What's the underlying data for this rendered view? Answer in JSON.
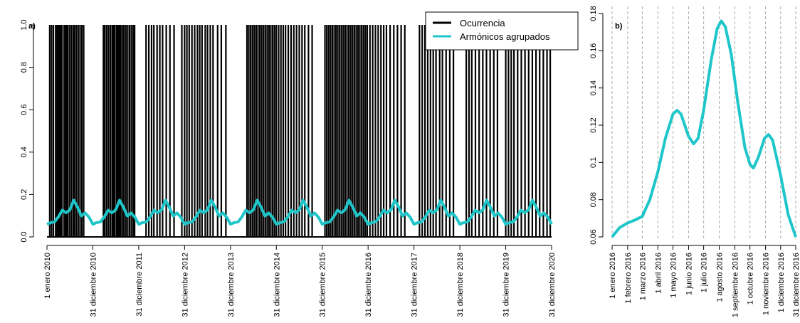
{
  "chart_data": [
    {
      "type": "line",
      "label": "a)",
      "legend": "topright",
      "xlim": [
        2010,
        2021
      ],
      "xticks": [
        {
          "value": 2010,
          "label": "1 enero 2010"
        },
        {
          "value": 2011,
          "label": "31 diciembre 2010"
        },
        {
          "value": 2012,
          "label": "31 diciembre 2011"
        },
        {
          "value": 2013,
          "label": "31 diciembre 2012"
        },
        {
          "value": 2014,
          "label": "31 diciembre 2013"
        },
        {
          "value": 2015,
          "label": "31 diciembre 2014"
        },
        {
          "value": 2016,
          "label": "31 diciembre 2015"
        },
        {
          "value": 2017,
          "label": "31 diciembre 2016"
        },
        {
          "value": 2018,
          "label": "31 diciembre 2017"
        },
        {
          "value": 2019,
          "label": "31 diciembre 2018"
        },
        {
          "value": 2020,
          "label": "31 diciembre 2019"
        },
        {
          "value": 2021,
          "label": "31 diciembre 2020"
        }
      ],
      "ylim": [
        0,
        1
      ],
      "yticks": [
        {
          "value": 0,
          "label": "0.0"
        },
        {
          "value": 0.2,
          "label": "0.2"
        },
        {
          "value": 0.4,
          "label": "0.4"
        },
        {
          "value": 0.6,
          "label": "0.6"
        },
        {
          "value": 0.8,
          "label": "0.8"
        },
        {
          "value": 1,
          "label": "1.0"
        }
      ],
      "series": [
        {
          "name": "Ocurrencia",
          "color": "#000000",
          "type": "spike",
          "x": [
            2010.06,
            2010.1,
            2010.14,
            2010.19,
            2010.22,
            2010.25,
            2010.28,
            2010.31,
            2010.35,
            2010.39,
            2010.42,
            2010.45,
            2010.49,
            2010.53,
            2010.57,
            2010.6,
            2010.64,
            2010.68,
            2010.72,
            2010.76,
            2010.8,
            2011.23,
            2011.26,
            2011.3,
            2011.34,
            2011.38,
            2011.42,
            2011.45,
            2011.48,
            2011.52,
            2011.55,
            2011.58,
            2011.61,
            2011.65,
            2011.68,
            2011.72,
            2011.76,
            2011.8,
            2011.84,
            2011.88,
            2011.91,
            2012.16,
            2012.22,
            2012.28,
            2012.33,
            2012.4,
            2012.46,
            2012.52,
            2012.6,
            2012.68,
            2012.77,
            2012.94,
            2013,
            2013.05,
            2013.1,
            2013.16,
            2013.22,
            2013.28,
            2013.33,
            2013.38,
            2013.45,
            2013.5,
            2013.56,
            2013.62,
            2013.72,
            2013.8,
            2013.9,
            2014.36,
            2014.4,
            2014.44,
            2014.48,
            2014.52,
            2014.56,
            2014.6,
            2014.64,
            2014.68,
            2014.72,
            2014.76,
            2014.8,
            2014.84,
            2014.88,
            2014.92,
            2014.96,
            2015,
            2015.05,
            2015.1,
            2015.15,
            2015.2,
            2015.26,
            2015.32,
            2015.38,
            2015.44,
            2015.5,
            2015.56,
            2015.62,
            2015.7,
            2015.78,
            2016.06,
            2016.1,
            2016.14,
            2016.18,
            2016.22,
            2016.26,
            2016.3,
            2016.34,
            2016.38,
            2016.42,
            2016.46,
            2016.5,
            2016.54,
            2016.58,
            2016.62,
            2016.66,
            2016.7,
            2016.74,
            2016.78,
            2016.82,
            2016.86,
            2016.9,
            2016.94,
            2016.98,
            2017.04,
            2017.1,
            2017.16,
            2017.22,
            2017.28,
            2017.34,
            2017.4,
            2017.48,
            2017.56,
            2017.64,
            2017.72,
            2017.8,
            2018.12,
            2018.18,
            2018.24,
            2018.3,
            2018.36,
            2018.42,
            2018.48,
            2018.56,
            2018.62,
            2018.7,
            2018.78,
            2018.86,
            2019.14,
            2019.2,
            2019.26,
            2019.34,
            2019.42,
            2019.5,
            2019.58,
            2019.66,
            2019.74,
            2019.82,
            2020,
            2020.06,
            2020.12,
            2020.18,
            2020.26,
            2020.34,
            2020.42,
            2020.5,
            2020.58,
            2020.66,
            2020.74,
            2020.82,
            2020.9,
            2020.97
          ],
          "values": [
            1,
            1,
            1,
            1,
            1,
            1,
            1,
            1,
            1,
            1,
            1,
            1,
            1,
            1,
            1,
            1,
            1,
            1,
            1,
            1,
            1,
            1,
            1,
            1,
            1,
            1,
            1,
            1,
            1,
            1,
            1,
            1,
            1,
            1,
            1,
            1,
            1,
            1,
            1,
            1,
            1,
            1,
            1,
            1,
            1,
            1,
            1,
            1,
            1,
            1,
            1,
            1,
            1,
            1,
            1,
            1,
            1,
            1,
            1,
            1,
            1,
            1,
            1,
            1,
            1,
            1,
            1,
            1,
            1,
            1,
            1,
            1,
            1,
            1,
            1,
            1,
            1,
            1,
            1,
            1,
            1,
            1,
            1,
            1,
            1,
            1,
            1,
            1,
            1,
            1,
            1,
            1,
            1,
            1,
            1,
            1,
            1,
            1,
            1,
            1,
            1,
            1,
            1,
            1,
            1,
            1,
            1,
            1,
            1,
            1,
            1,
            1,
            1,
            1,
            1,
            1,
            1,
            1,
            1,
            1,
            1,
            1,
            1,
            1,
            1,
            1,
            1,
            1,
            1,
            1,
            1,
            1,
            1,
            1,
            1,
            1,
            1,
            1,
            1,
            1,
            1,
            1,
            1,
            1,
            1,
            1,
            1,
            1,
            1,
            1,
            1,
            1,
            1,
            1,
            1,
            1,
            1,
            1,
            1,
            1,
            1,
            1,
            1,
            1,
            1,
            1,
            1,
            1,
            1
          ]
        },
        {
          "name": "Armónicos agrupados",
          "color": "#1fc6c9",
          "type": "line",
          "x": [
            2010,
            2010.083,
            2010.167,
            2010.25,
            2010.333,
            2010.417,
            2010.5,
            2010.583,
            2010.667,
            2010.75,
            2010.833,
            2010.917,
            2011,
            2011.083,
            2011.167,
            2011.25,
            2011.333,
            2011.417,
            2011.5,
            2011.583,
            2011.667,
            2011.75,
            2011.833,
            2011.917,
            2012,
            2012.083,
            2012.167,
            2012.25,
            2012.333,
            2012.417,
            2012.5,
            2012.583,
            2012.667,
            2012.75,
            2012.833,
            2012.917,
            2013,
            2013.083,
            2013.167,
            2013.25,
            2013.333,
            2013.417,
            2013.5,
            2013.583,
            2013.667,
            2013.75,
            2013.833,
            2013.917,
            2014,
            2014.083,
            2014.167,
            2014.25,
            2014.333,
            2014.417,
            2014.5,
            2014.583,
            2014.667,
            2014.75,
            2014.833,
            2014.917,
            2015,
            2015.083,
            2015.167,
            2015.25,
            2015.333,
            2015.417,
            2015.5,
            2015.583,
            2015.667,
            2015.75,
            2015.833,
            2015.917,
            2016,
            2016.083,
            2016.167,
            2016.25,
            2016.333,
            2016.417,
            2016.5,
            2016.583,
            2016.667,
            2016.75,
            2016.833,
            2016.917,
            2017,
            2017.083,
            2017.167,
            2017.25,
            2017.333,
            2017.417,
            2017.5,
            2017.583,
            2017.667,
            2017.75,
            2017.833,
            2017.917,
            2018,
            2018.083,
            2018.167,
            2018.25,
            2018.333,
            2018.417,
            2018.5,
            2018.583,
            2018.667,
            2018.75,
            2018.833,
            2018.917,
            2019,
            2019.083,
            2019.167,
            2019.25,
            2019.333,
            2019.417,
            2019.5,
            2019.583,
            2019.667,
            2019.75,
            2019.833,
            2019.917,
            2020,
            2020.083,
            2020.167,
            2020.25,
            2020.333,
            2020.417,
            2020.5,
            2020.583,
            2020.667,
            2020.75,
            2020.833,
            2020.917,
            2021
          ],
          "values": [
            0.06,
            0.0675,
            0.071,
            0.095,
            0.126,
            0.114,
            0.128,
            0.173,
            0.14,
            0.099,
            0.113,
            0.093,
            0.06,
            0.0675,
            0.071,
            0.095,
            0.126,
            0.114,
            0.128,
            0.173,
            0.14,
            0.099,
            0.113,
            0.093,
            0.06,
            0.0675,
            0.071,
            0.095,
            0.126,
            0.114,
            0.128,
            0.173,
            0.14,
            0.099,
            0.113,
            0.093,
            0.06,
            0.0675,
            0.071,
            0.095,
            0.126,
            0.114,
            0.128,
            0.173,
            0.14,
            0.099,
            0.113,
            0.093,
            0.06,
            0.0675,
            0.071,
            0.095,
            0.126,
            0.114,
            0.128,
            0.173,
            0.14,
            0.099,
            0.113,
            0.093,
            0.06,
            0.0675,
            0.071,
            0.095,
            0.126,
            0.114,
            0.128,
            0.173,
            0.14,
            0.099,
            0.113,
            0.093,
            0.06,
            0.0675,
            0.071,
            0.095,
            0.126,
            0.114,
            0.128,
            0.173,
            0.14,
            0.099,
            0.113,
            0.093,
            0.06,
            0.0675,
            0.071,
            0.095,
            0.126,
            0.114,
            0.128,
            0.173,
            0.14,
            0.099,
            0.113,
            0.093,
            0.06,
            0.0675,
            0.071,
            0.095,
            0.126,
            0.114,
            0.128,
            0.173,
            0.14,
            0.099,
            0.113,
            0.093,
            0.06,
            0.0675,
            0.071,
            0.095,
            0.126,
            0.114,
            0.128,
            0.173,
            0.14,
            0.099,
            0.113,
            0.093,
            0.06,
            0.0675,
            0.071,
            0.095,
            0.126,
            0.114,
            0.128,
            0.173,
            0.14,
            0.099,
            0.113,
            0.093,
            0.06
          ]
        }
      ]
    },
    {
      "type": "line",
      "label": "b)",
      "grid": "x",
      "xlim": [
        1,
        366
      ],
      "xticks": [
        {
          "value": 1,
          "label": "1 enero 2016"
        },
        {
          "value": 32,
          "label": "1 febrero 2016"
        },
        {
          "value": 61,
          "label": "1 marzo 2016"
        },
        {
          "value": 92,
          "label": "1 abril 2016"
        },
        {
          "value": 122,
          "label": "1 mayo 2016"
        },
        {
          "value": 153,
          "label": "1 junio 2016"
        },
        {
          "value": 183,
          "label": "1 julio 2016"
        },
        {
          "value": 214,
          "label": "1 agosto 2016"
        },
        {
          "value": 245,
          "label": "1 septiembre 2016"
        },
        {
          "value": 275,
          "label": "1 octubre 2016"
        },
        {
          "value": 306,
          "label": "1 noviembre 2016"
        },
        {
          "value": 336,
          "label": "1 diciembre 2016"
        },
        {
          "value": 366,
          "label": "31 diciembre 2016"
        }
      ],
      "ylim": [
        0.06,
        0.18
      ],
      "yticks": [
        0.06,
        0.08,
        0.1,
        0.12,
        0.14,
        0.16,
        0.18
      ],
      "series": [
        {
          "color": "#1fc6c9",
          "type": "line",
          "x": [
            1,
            16,
            32,
            46,
            61,
            76,
            92,
            107,
            122,
            130,
            138,
            153,
            163,
            172,
            183,
            198,
            210,
            218,
            226,
            238,
            251,
            265,
            275,
            282,
            292,
            304,
            312,
            320,
            336,
            351,
            366
          ],
          "values": [
            0.06,
            0.065,
            0.0675,
            0.069,
            0.071,
            0.08,
            0.095,
            0.113,
            0.126,
            0.128,
            0.126,
            0.114,
            0.11,
            0.113,
            0.128,
            0.155,
            0.172,
            0.176,
            0.173,
            0.158,
            0.132,
            0.108,
            0.099,
            0.097,
            0.103,
            0.113,
            0.115,
            0.112,
            0.093,
            0.072,
            0.06
          ]
        }
      ]
    }
  ]
}
